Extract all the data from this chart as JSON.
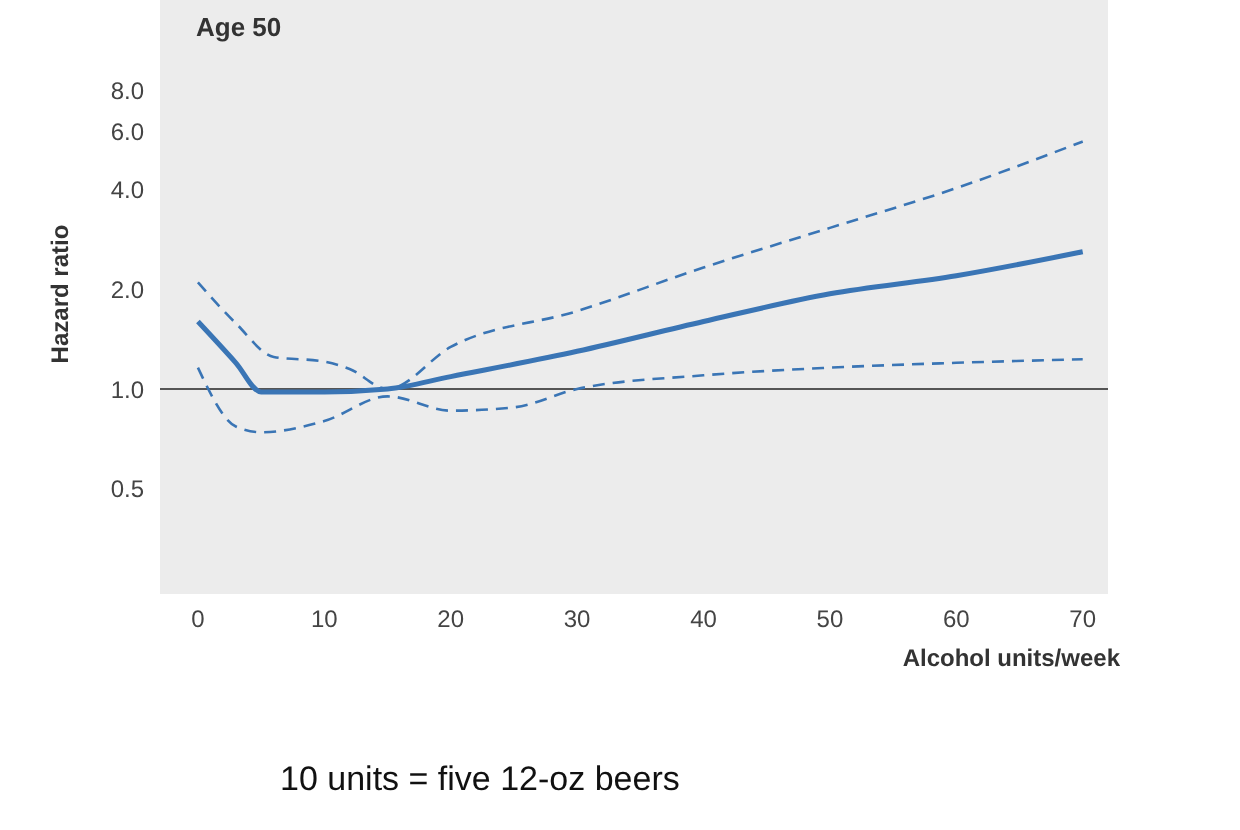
{
  "chart_data": {
    "type": "line",
    "title": "Age 50",
    "xlabel": "Alcohol units/week",
    "ylabel": "Hazard ratio",
    "annotations": [
      "10 units = five 12-oz beers"
    ],
    "log": "y",
    "grid": false,
    "legend": false,
    "marker": "none",
    "xlim": [
      -3,
      72
    ],
    "xticks": [
      0,
      10,
      20,
      30,
      40,
      50,
      60,
      70
    ],
    "ylim": [
      0.24,
      15
    ],
    "yticks": [
      {
        "value": 0.5,
        "label": "0.5"
      },
      {
        "value": 1,
        "label": "1.0"
      },
      {
        "value": 2,
        "label": "2.0"
      },
      {
        "value": 4,
        "label": "4.0"
      },
      {
        "value": 6,
        "label": "6.0"
      },
      {
        "value": 8,
        "label": "8.0"
      }
    ],
    "ref_lines": [
      {
        "axis": "y",
        "value": 1,
        "color": "#555555",
        "line_style": "solid"
      }
    ],
    "series": [
      {
        "color": "#3a75b5",
        "line_style": "solid",
        "x": [
          0,
          3,
          5,
          10,
          15,
          20,
          30,
          40,
          50,
          60,
          70
        ],
        "values": [
          1.6,
          1.2,
          0.98,
          0.98,
          1.0,
          1.09,
          1.3,
          1.6,
          1.94,
          2.2,
          2.6
        ]
      },
      {
        "color": "#3a75b5",
        "line_style": "dashed",
        "x": [
          0,
          3,
          6,
          10,
          12,
          15,
          20,
          30,
          40,
          50,
          60,
          70
        ],
        "values": [
          2.1,
          1.58,
          1.25,
          1.21,
          1.15,
          1.0,
          1.34,
          1.72,
          2.33,
          3.07,
          4.05,
          5.6
        ]
      },
      {
        "color": "#3a75b5",
        "line_style": "dashed",
        "x": [
          0,
          3,
          5,
          10,
          15,
          20,
          25,
          30,
          40,
          50,
          60,
          70
        ],
        "values": [
          1.16,
          0.77,
          0.74,
          0.8,
          0.95,
          0.86,
          0.88,
          1.0,
          1.1,
          1.16,
          1.2,
          1.23
        ]
      }
    ]
  }
}
